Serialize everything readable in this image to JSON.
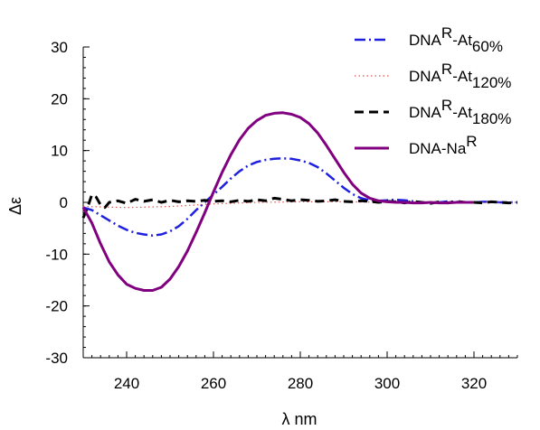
{
  "chart_data": {
    "type": "line",
    "title": "",
    "xlabel": "λ nm",
    "ylabel": "Δε",
    "xlim": [
      230,
      330
    ],
    "ylim": [
      -30,
      30
    ],
    "xticks": [
      240,
      260,
      280,
      300,
      320
    ],
    "yticks": [
      -30,
      -20,
      -10,
      0,
      10,
      20,
      30
    ],
    "grid": false,
    "legend_position": "top-right",
    "series": [
      {
        "name": "DNA^R-At60%",
        "legend_main": "DNA",
        "legend_sup": "R",
        "legend_tail": "-At",
        "legend_sub": "60%",
        "color": "#1f1fe0",
        "style": "dash-dot",
        "x": [
          230,
          232,
          234,
          236,
          238,
          240,
          242,
          244,
          246,
          248,
          250,
          252,
          254,
          256,
          258,
          260,
          262,
          264,
          266,
          268,
          270,
          272,
          274,
          276,
          278,
          280,
          282,
          284,
          286,
          288,
          290,
          292,
          294,
          296,
          298,
          300,
          302,
          304,
          306,
          308,
          310,
          312,
          314,
          316,
          318,
          320,
          322,
          324,
          326,
          328,
          330
        ],
        "y": [
          -1,
          -1.5,
          -2.5,
          -3.5,
          -4.5,
          -5.3,
          -5.9,
          -6.2,
          -6.4,
          -6.2,
          -5.6,
          -4.6,
          -3.2,
          -1.5,
          0,
          1.5,
          3,
          4.6,
          6,
          7.1,
          7.8,
          8.2,
          8.4,
          8.5,
          8.4,
          8.1,
          7.6,
          6.8,
          5.6,
          4.2,
          2.8,
          1.6,
          0.8,
          0.4,
          0.3,
          0.4,
          0.5,
          0.4,
          0.2,
          0,
          -0.1,
          0,
          0.2,
          0.1,
          0,
          0,
          0.1,
          0.1,
          0,
          0,
          0
        ]
      },
      {
        "name": "DNA^R-At120%",
        "legend_main": "DNA",
        "legend_sup": "R",
        "legend_tail": "-At",
        "legend_sub": "120%",
        "color": "#e05050",
        "style": "dotted",
        "x": [
          230,
          240,
          250,
          260,
          270,
          280,
          290,
          300,
          310,
          320,
          330
        ],
        "y": [
          -0.8,
          -1,
          -0.8,
          -0.3,
          0,
          0.1,
          0.1,
          0,
          0,
          0,
          0
        ]
      },
      {
        "name": "DNA^R-At180%",
        "legend_main": "DNA",
        "legend_sup": "R",
        "legend_tail": "-At",
        "legend_sub": "180%",
        "color": "#000000",
        "style": "dashed",
        "x": [
          230,
          231,
          232,
          233,
          234,
          235,
          236,
          238,
          240,
          242,
          244,
          246,
          248,
          250,
          252,
          254,
          256,
          258,
          260,
          262,
          264,
          266,
          268,
          270,
          272,
          274,
          276,
          278,
          280,
          282,
          284,
          286,
          288,
          290,
          292,
          294,
          296,
          298,
          300,
          302,
          304,
          306,
          308,
          310,
          312,
          314,
          316,
          318,
          320,
          322,
          324,
          326,
          328,
          330
        ],
        "y": [
          -3,
          -1,
          1.5,
          1,
          -0.5,
          -1,
          0,
          0.3,
          -0.2,
          0.6,
          0.2,
          0.5,
          0,
          0.4,
          0.1,
          0.3,
          0.2,
          0.4,
          0.2,
          0.3,
          0.1,
          0.4,
          0.2,
          0.5,
          0.3,
          0.8,
          0.6,
          0.3,
          0.5,
          0.4,
          0.2,
          0.3,
          0.5,
          0.2,
          0.1,
          0.3,
          0.2,
          0,
          0.2,
          0.1,
          -0.1,
          0.2,
          0,
          -0.2,
          0.1,
          -0.1,
          0.2,
          0,
          0,
          -0.1,
          0.1,
          0,
          -0.1,
          0
        ]
      },
      {
        "name": "DNA-Na^R",
        "legend_main": "DNA-Na",
        "legend_sup": "R",
        "legend_tail": "",
        "legend_sub": "",
        "color": "#800080",
        "style": "solid",
        "x": [
          230,
          232,
          234,
          236,
          238,
          240,
          242,
          244,
          246,
          248,
          250,
          252,
          254,
          256,
          258,
          260,
          262,
          264,
          266,
          268,
          270,
          272,
          274,
          276,
          278,
          280,
          282,
          284,
          286,
          288,
          290,
          292,
          294,
          296,
          298,
          300,
          302,
          304,
          306,
          308,
          310,
          312,
          314,
          316,
          318,
          320
        ],
        "y": [
          -1,
          -4,
          -8,
          -11.5,
          -14,
          -15.8,
          -16.6,
          -17,
          -17,
          -16.4,
          -14.8,
          -12.4,
          -9.4,
          -5.8,
          -2,
          2,
          5.8,
          9.2,
          12.1,
          14.3,
          15.8,
          16.8,
          17.2,
          17.3,
          17,
          16.4,
          15.2,
          13.4,
          11,
          8.4,
          5.8,
          3.5,
          1.8,
          0.8,
          0.3,
          0.1,
          0,
          0,
          -0.1,
          -0.1,
          0,
          -0.1,
          -0.1,
          0,
          0,
          0
        ]
      }
    ]
  }
}
